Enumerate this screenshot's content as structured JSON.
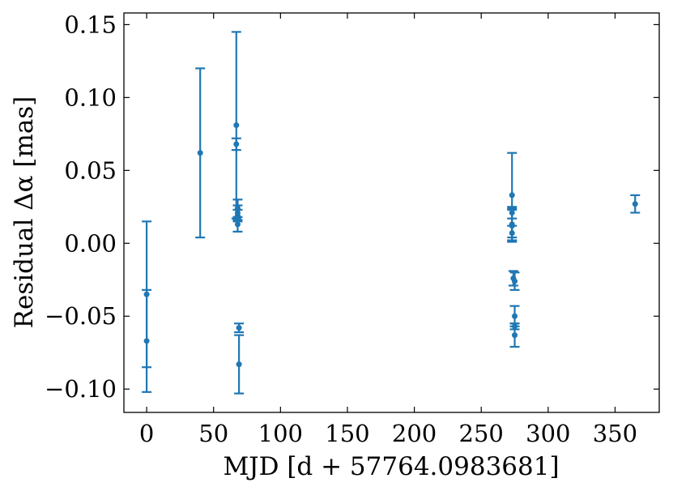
{
  "chart_data": {
    "type": "scatter",
    "xlabel": "MJD [d + 57764.0983681]",
    "ylabel": "Residual Δα [mas]",
    "xlim": [
      -17,
      383
    ],
    "ylim": [
      -0.116,
      0.158
    ],
    "x_ticks": [
      0,
      50,
      100,
      150,
      200,
      250,
      300,
      350
    ],
    "y_ticks": [
      -0.1,
      -0.05,
      0.0,
      0.05,
      0.1,
      0.15
    ],
    "x_tick_labels": [
      "0",
      "50",
      "100",
      "150",
      "200",
      "250",
      "300",
      "350"
    ],
    "y_tick_labels": [
      "−0.10",
      "−0.05",
      "0.00",
      "0.05",
      "0.10",
      "0.15"
    ],
    "grid": false,
    "ticks_direction": "in",
    "series_color": "#1f77b4",
    "points": [
      {
        "x": 0,
        "y": -0.035,
        "err": 0.05
      },
      {
        "x": 0,
        "y": -0.067,
        "err": 0.035
      },
      {
        "x": 40,
        "y": 0.062,
        "err": 0.058
      },
      {
        "x": 67,
        "y": 0.081,
        "err": 0.064
      },
      {
        "x": 67,
        "y": 0.068,
        "err": 0.004
      },
      {
        "x": 68,
        "y": 0.024,
        "err": 0.006
      },
      {
        "x": 68,
        "y": 0.021,
        "err": 0.005
      },
      {
        "x": 68,
        "y": 0.019,
        "err": 0.004
      },
      {
        "x": 68,
        "y": 0.013,
        "err": 0.005
      },
      {
        "x": 69,
        "y": -0.058,
        "err": 0.003
      },
      {
        "x": 69,
        "y": -0.083,
        "err": 0.02
      },
      {
        "x": 273,
        "y": 0.033,
        "err": 0.029
      },
      {
        "x": 273,
        "y": 0.021,
        "err": 0.004
      },
      {
        "x": 273,
        "y": 0.013,
        "err": 0.011
      },
      {
        "x": 273,
        "y": 0.012,
        "err": 0.011
      },
      {
        "x": 273,
        "y": 0.007,
        "err": 0.005
      },
      {
        "x": 274,
        "y": -0.024,
        "err": 0.005
      },
      {
        "x": 275,
        "y": -0.026,
        "err": 0.006
      },
      {
        "x": 275,
        "y": -0.05,
        "err": 0.007
      },
      {
        "x": 275,
        "y": -0.057,
        "err": 0.002
      },
      {
        "x": 275,
        "y": -0.063,
        "err": 0.008
      },
      {
        "x": 365,
        "y": 0.027,
        "err": 0.006
      }
    ]
  }
}
